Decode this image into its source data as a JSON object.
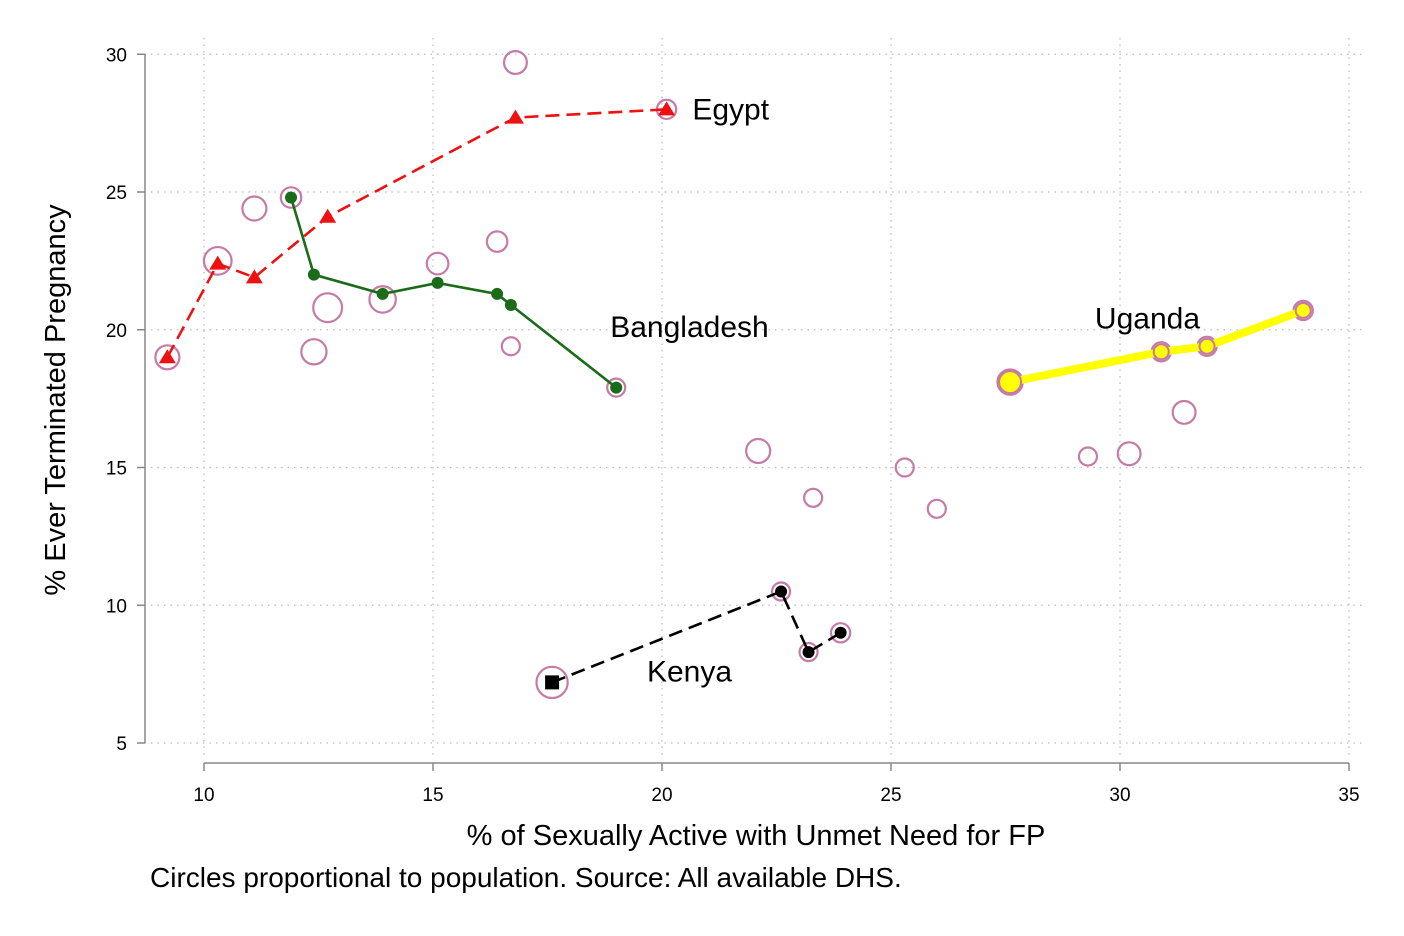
{
  "chart_data": {
    "type": "scatter",
    "xlabel": "% of Sexually Active with Unmet Need for FP",
    "ylabel": "% Ever Terminated Pregnancy",
    "note": "Circles proportional to population. Source: All available DHS.",
    "xlim": [
      8.7,
      35
    ],
    "ylim": [
      4.5,
      30.5
    ],
    "x_ticks": [
      10,
      15,
      20,
      25,
      30,
      35
    ],
    "y_ticks": [
      5,
      10,
      15,
      20,
      25,
      30
    ],
    "grid": true,
    "bubbles": [
      {
        "x": 9.2,
        "y": 19.0,
        "size": 1.0
      },
      {
        "x": 10.3,
        "y": 22.5,
        "size": 1.15
      },
      {
        "x": 11.1,
        "y": 24.4,
        "size": 1.0
      },
      {
        "x": 11.9,
        "y": 24.8,
        "size": 0.85
      },
      {
        "x": 12.4,
        "y": 19.2,
        "size": 1.05
      },
      {
        "x": 12.7,
        "y": 20.8,
        "size": 1.2
      },
      {
        "x": 13.9,
        "y": 21.1,
        "size": 1.1
      },
      {
        "x": 15.1,
        "y": 22.4,
        "size": 0.9
      },
      {
        "x": 16.4,
        "y": 23.2,
        "size": 0.85
      },
      {
        "x": 16.7,
        "y": 19.4,
        "size": 0.75
      },
      {
        "x": 16.8,
        "y": 29.7,
        "size": 0.95
      },
      {
        "x": 20.1,
        "y": 28.0,
        "size": 0.8
      },
      {
        "x": 19.0,
        "y": 17.9,
        "size": 0.75
      },
      {
        "x": 17.6,
        "y": 7.2,
        "size": 1.3
      },
      {
        "x": 22.1,
        "y": 15.6,
        "size": 1.0
      },
      {
        "x": 22.6,
        "y": 10.5,
        "size": 0.75
      },
      {
        "x": 23.2,
        "y": 8.3,
        "size": 0.75
      },
      {
        "x": 23.3,
        "y": 13.9,
        "size": 0.75
      },
      {
        "x": 23.9,
        "y": 9.0,
        "size": 0.8
      },
      {
        "x": 25.3,
        "y": 15.0,
        "size": 0.75
      },
      {
        "x": 26.0,
        "y": 13.5,
        "size": 0.75
      },
      {
        "x": 27.6,
        "y": 18.1,
        "size": 1.05
      },
      {
        "x": 29.3,
        "y": 15.4,
        "size": 0.75
      },
      {
        "x": 30.2,
        "y": 15.5,
        "size": 0.95
      },
      {
        "x": 30.9,
        "y": 19.2,
        "size": 0.8
      },
      {
        "x": 31.4,
        "y": 17.0,
        "size": 0.95
      },
      {
        "x": 31.9,
        "y": 19.4,
        "size": 0.8
      },
      {
        "x": 34.0,
        "y": 20.7,
        "size": 0.8
      }
    ],
    "series": [
      {
        "name": "Egypt",
        "color": "#ee1111",
        "line": "dashed",
        "marker": "triangle",
        "x": [
          9.2,
          10.3,
          11.1,
          12.7,
          16.8,
          20.1
        ],
        "y": [
          19.0,
          22.4,
          21.9,
          24.1,
          27.7,
          28.0
        ]
      },
      {
        "name": "Bangladesh",
        "color": "#1a6b1a",
        "line": "solid",
        "marker": "circle",
        "x": [
          11.9,
          12.4,
          13.9,
          15.1,
          16.4,
          16.7,
          19.0
        ],
        "y": [
          24.8,
          22.0,
          21.3,
          21.7,
          21.3,
          20.9,
          17.9
        ]
      },
      {
        "name": "Kenya",
        "color": "#000000",
        "line": "dashed",
        "marker": "square-then-circle",
        "x": [
          17.6,
          22.6,
          23.2,
          23.9
        ],
        "y": [
          7.2,
          10.5,
          8.3,
          9.0
        ]
      },
      {
        "name": "Uganda",
        "color": "#ffff00",
        "line": "thick",
        "marker": "circle",
        "x": [
          27.6,
          30.9,
          31.9,
          34.0
        ],
        "y": [
          18.1,
          19.2,
          19.4,
          20.7
        ]
      }
    ],
    "labels": [
      {
        "text": "Egypt",
        "x": 21.5,
        "y": 28.0
      },
      {
        "text": "Bangladesh",
        "x": 20.6,
        "y": 20.1
      },
      {
        "text": "Kenya",
        "x": 20.6,
        "y": 7.6
      },
      {
        "text": "Uganda",
        "x": 30.6,
        "y": 20.4
      }
    ],
    "colors": {
      "bubble_edge": "#c67ba6",
      "grid": "#bbbbbb",
      "axis": "#888888"
    }
  }
}
